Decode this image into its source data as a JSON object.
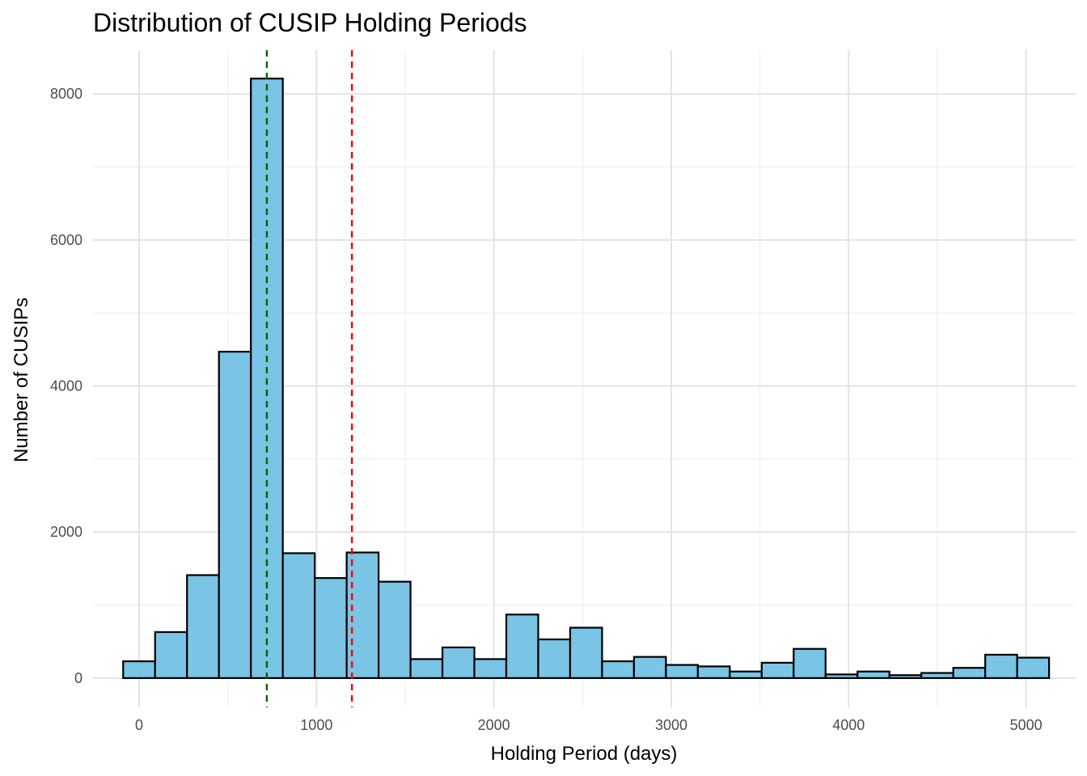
{
  "chart_data": {
    "type": "bar",
    "title": "Distribution of CUSIP Holding Periods",
    "xlabel": "Holding Period (days)",
    "ylabel": "Number of CUSIPs",
    "xlim": [
      -260,
      5280
    ],
    "ylim": [
      -400,
      8600
    ],
    "x_ticks": [
      0,
      1000,
      2000,
      3000,
      4000,
      5000
    ],
    "x_tick_labels": [
      "0",
      "1000",
      "2000",
      "3000",
      "4000",
      "5000"
    ],
    "y_ticks": [
      0,
      2000,
      4000,
      6000,
      8000
    ],
    "y_tick_labels": [
      "0",
      "2000",
      "4000",
      "6000",
      "8000"
    ],
    "bin_width": 180,
    "bin_centers": [
      0,
      180,
      360,
      540,
      720,
      900,
      1080,
      1260,
      1440,
      1620,
      1800,
      1980,
      2160,
      2340,
      2520,
      2700,
      2880,
      3060,
      3240,
      3420,
      3600,
      3780,
      3960,
      4140,
      4320,
      4500,
      4680,
      4860,
      5040
    ],
    "values": [
      230,
      630,
      1410,
      4470,
      8210,
      1710,
      1370,
      1720,
      1320,
      260,
      420,
      260,
      870,
      530,
      690,
      230,
      290,
      180,
      160,
      90,
      210,
      400,
      50,
      90,
      40,
      70,
      140,
      320,
      280
    ],
    "reference_lines": [
      {
        "x": 720,
        "color": "#006400",
        "style": "dashed"
      },
      {
        "x": 1200,
        "color": "#ff0000",
        "style": "dashed"
      }
    ],
    "bar_fill": "#7ac4e6",
    "bar_stroke": "#000000",
    "grid": true
  }
}
